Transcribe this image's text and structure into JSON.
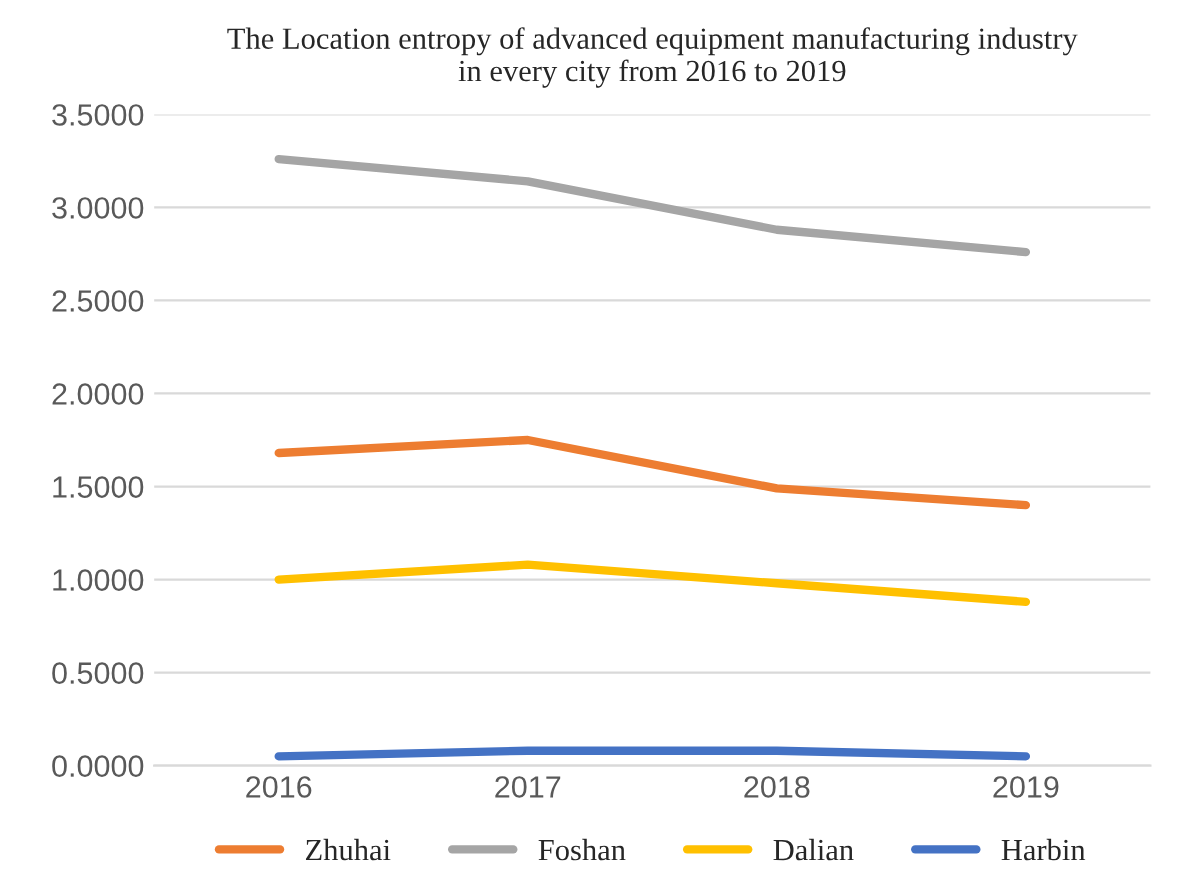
{
  "chart_data": {
    "type": "line",
    "title": "The Location entropy of advanced equipment manufacturing industry\nin every city from 2016 to 2019",
    "categories": [
      "2016",
      "2017",
      "2018",
      "2019"
    ],
    "series": [
      {
        "name": "Zhuhai",
        "color": "#ed7d31",
        "values": [
          1.68,
          1.75,
          1.49,
          1.4
        ]
      },
      {
        "name": "Foshan",
        "color": "#a5a5a5",
        "values": [
          3.26,
          3.14,
          2.88,
          2.76
        ]
      },
      {
        "name": "Dalian",
        "color": "#ffc000",
        "values": [
          1.0,
          1.08,
          0.98,
          0.88
        ]
      },
      {
        "name": "Harbin",
        "color": "#4472c4",
        "values": [
          0.05,
          0.08,
          0.08,
          0.05
        ]
      }
    ],
    "ylim": [
      0,
      3.5
    ],
    "yticks": [
      {
        "value": 0,
        "label": "0.0000"
      },
      {
        "value": 0.5,
        "label": "0.5000"
      },
      {
        "value": 1,
        "label": "1.0000"
      },
      {
        "value": 1.5,
        "label": "1.5000"
      },
      {
        "value": 2,
        "label": "2.0000"
      },
      {
        "value": 2.5,
        "label": "2.5000"
      },
      {
        "value": 3,
        "label": "3.0000"
      },
      {
        "value": 3.5,
        "label": "3.5000"
      }
    ],
    "grid": "y",
    "legend": "bottom",
    "marker": "none",
    "line_style": "solid"
  }
}
